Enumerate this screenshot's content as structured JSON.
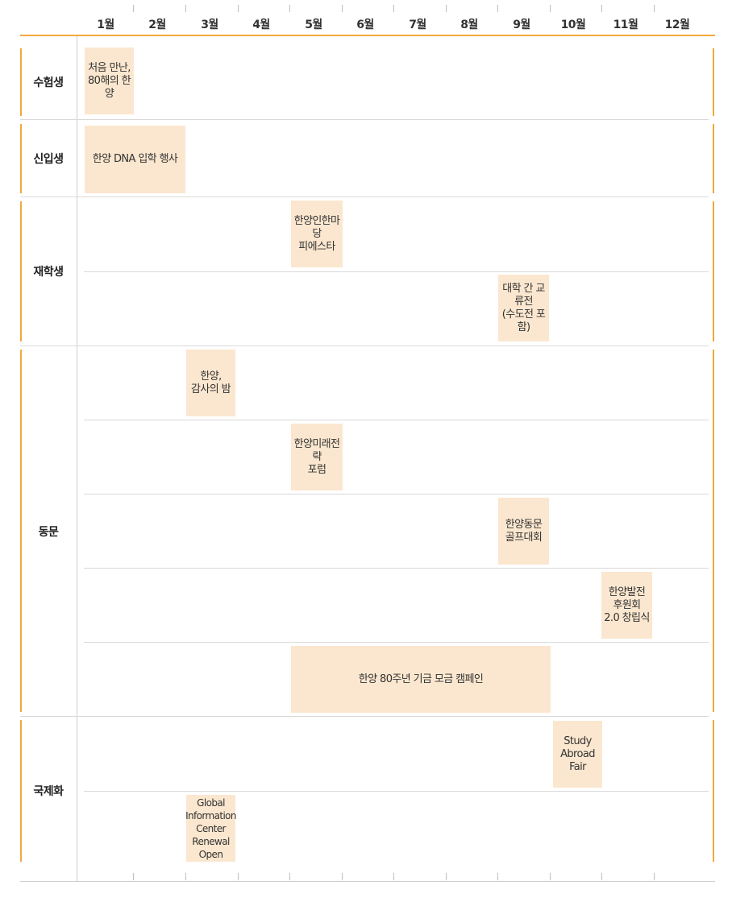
{
  "months": [
    "1월",
    "2월",
    "3월",
    "4월",
    "5월",
    "6월",
    "7월",
    "8월",
    "9월",
    "10월",
    "11월",
    "12월"
  ],
  "categories": {
    "exam": "수험생",
    "freshman": "신입생",
    "student": "재학생",
    "alumni": "동문",
    "global": "국제화"
  },
  "events": {
    "first_meeting": "처음 만난,\n80해의 한양",
    "dna_entrance": "한양 DNA 입학 행사",
    "festival": "한양인한마당\n피에스타",
    "interuniv": "대학 간 교류전\n(수도전 포함)",
    "thanks_night": "한양,\n감사의 밤",
    "future_forum": "한양미래전략\n포럼",
    "golf": "한양동문\n골프대회",
    "support_assoc": "한양발전\n후원회\n2.0 창립식",
    "campaign": "한양 80주년 기금 모금 캠페인",
    "study_abroad": "Study\nAbroad\nFair",
    "gic_open": "Global\nInformation\nCenter\nRenewal\nOpen"
  }
}
